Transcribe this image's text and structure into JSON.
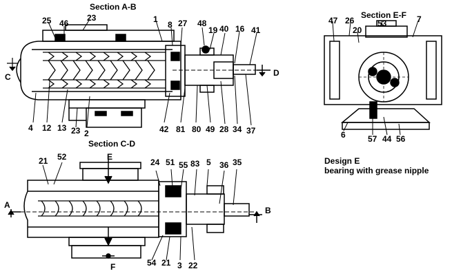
{
  "titles": {
    "section_ab": "Section A-B",
    "section_ef": "Section E-F",
    "section_cd": "Section C-D",
    "design_line1": "Design E",
    "design_line2": "bearing with grease nipple"
  },
  "markers": {
    "a": "A",
    "b": "B",
    "c": "C",
    "d": "D",
    "e": "E",
    "f": "F"
  },
  "callouts_ab": [
    "25",
    "46",
    "23",
    "1",
    "8",
    "27",
    "48",
    "19",
    "40",
    "16",
    "41",
    "4",
    "12",
    "13",
    "23",
    "2",
    "42",
    "81",
    "80",
    "49",
    "28",
    "34",
    "37"
  ],
  "callouts_ef": [
    "47",
    "26",
    "20",
    "53",
    "7",
    "6",
    "57",
    "44",
    "56"
  ],
  "callouts_cd": [
    "21",
    "52",
    "24",
    "51",
    "55",
    "83",
    "5",
    "36",
    "35",
    "54",
    "21",
    "3",
    "22"
  ]
}
